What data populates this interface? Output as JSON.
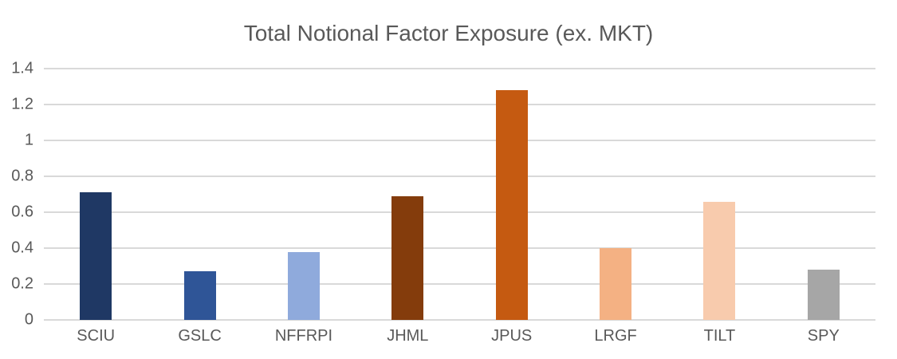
{
  "chart_data": {
    "type": "bar",
    "title": "Total Notional Factor Exposure (ex. MKT)",
    "categories": [
      "SCIU",
      "GSLC",
      "NFFRPI",
      "JHML",
      "JPUS",
      "LRGF",
      "TILT",
      "SPY"
    ],
    "values": [
      0.71,
      0.27,
      0.38,
      0.69,
      1.28,
      0.4,
      0.66,
      0.28
    ],
    "bar_colors": [
      "#1F3864",
      "#2F5597",
      "#8FAADC",
      "#843C0C",
      "#C55A11",
      "#F4B183",
      "#F8CBAD",
      "#A6A6A6"
    ],
    "xlabel": "",
    "ylabel": "",
    "ylim": [
      0,
      1.4
    ],
    "y_ticks": [
      0,
      0.2,
      0.4,
      0.6,
      0.8,
      1,
      1.2,
      1.4
    ],
    "y_tick_labels": [
      "0",
      "0.2",
      "0.4",
      "0.6",
      "0.8",
      "1",
      "1.2",
      "1.4"
    ],
    "grid": true,
    "legend": false,
    "gridline_color": "#D9D9D9",
    "text_color": "#595959",
    "background_color": "#FFFFFF"
  }
}
